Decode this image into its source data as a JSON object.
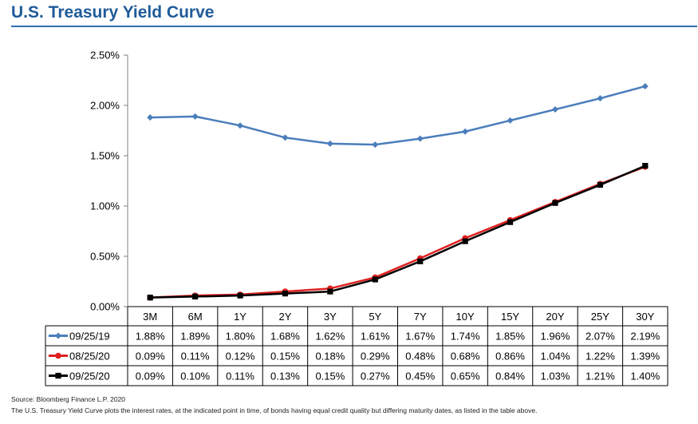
{
  "page": {
    "title": "U.S. Treasury Yield Curve",
    "source": "Source: Bloomberg Finance L.P. 2020",
    "note": "The U.S. Treasury Yield Curve plots the interest rates, at the indicated point in time, of bonds having equal credit quality but differing maturity dates, as listed in the table above."
  },
  "chart_data": {
    "type": "line",
    "title": "",
    "xlabel": "",
    "ylabel": "",
    "categories": [
      "3M",
      "6M",
      "1Y",
      "2Y",
      "3Y",
      "5Y",
      "7Y",
      "10Y",
      "15Y",
      "20Y",
      "25Y",
      "30Y"
    ],
    "y_ticks": [
      "0.00%",
      "0.50%",
      "1.00%",
      "1.50%",
      "2.00%",
      "2.50%"
    ],
    "ylim": [
      0,
      2.5
    ],
    "grid": false,
    "legend": "data-table-below",
    "series": [
      {
        "name": "09/25/19",
        "color": "#4a7ebb",
        "marker": "diamond",
        "values": [
          1.88,
          1.89,
          1.8,
          1.68,
          1.62,
          1.61,
          1.67,
          1.74,
          1.85,
          1.96,
          2.07,
          2.19
        ],
        "labels": [
          "1.88%",
          "1.89%",
          "1.80%",
          "1.68%",
          "1.62%",
          "1.61%",
          "1.67%",
          "1.74%",
          "1.85%",
          "1.96%",
          "2.07%",
          "2.19%"
        ]
      },
      {
        "name": "08/25/20",
        "color": "#e02020",
        "marker": "circle",
        "values": [
          0.09,
          0.11,
          0.12,
          0.15,
          0.18,
          0.29,
          0.48,
          0.68,
          0.86,
          1.04,
          1.22,
          1.39
        ],
        "labels": [
          "0.09%",
          "0.11%",
          "0.12%",
          "0.15%",
          "0.18%",
          "0.29%",
          "0.48%",
          "0.68%",
          "0.86%",
          "1.04%",
          "1.22%",
          "1.39%"
        ]
      },
      {
        "name": "09/25/20",
        "color": "#000000",
        "marker": "square",
        "values": [
          0.09,
          0.1,
          0.11,
          0.13,
          0.15,
          0.27,
          0.45,
          0.65,
          0.84,
          1.03,
          1.21,
          1.4
        ],
        "labels": [
          "0.09%",
          "0.10%",
          "0.11%",
          "0.13%",
          "0.15%",
          "0.27%",
          "0.45%",
          "0.65%",
          "0.84%",
          "1.03%",
          "1.21%",
          "1.40%"
        ]
      }
    ]
  }
}
